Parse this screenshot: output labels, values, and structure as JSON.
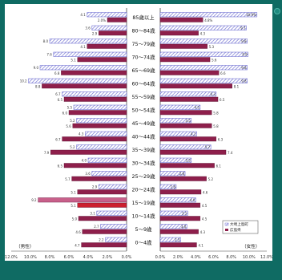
{
  "chart_data": {
    "type": "bar",
    "categories": [
      "85歳以上",
      "80～84歳",
      "75～79歳",
      "70～74歳",
      "65～69歳",
      "60～64歳",
      "55～59歳",
      "50～54歳",
      "45～49歳",
      "40～44歳",
      "35～39歳",
      "30～34歳",
      "25～29歳",
      "20～24歳",
      "15～19歳",
      "10～14歳",
      "5～9歳",
      "0～4歳"
    ],
    "xlim": [
      0,
      12
    ],
    "xticks": [
      "12.0%",
      "10.0%",
      "8.0%",
      "6.0%",
      "4.0%",
      "2.0%",
      "0.0%"
    ],
    "xticks_right": [
      "0.0%",
      "2.0%",
      "4.0%",
      "6.0%",
      "8.0%",
      "10.0%",
      "12.0%"
    ],
    "left_label": "（男性）",
    "right_label": "（女性）",
    "series": [
      {
        "name": "大崎上島町",
        "side": "male",
        "values": [
          4.1,
          3.6,
          8.0,
          7.6,
          9.0,
          10.2,
          6.7,
          5.5,
          5.2,
          4.3,
          5.2,
          4.0,
          3.6,
          2.9,
          9.2,
          3.1,
          2.7,
          2.2
        ],
        "labels": [
          "4.1",
          "3.6",
          "8.0",
          "7.6",
          "9.0",
          "10.2",
          "6.7",
          "5.5",
          "5.2",
          "4.3",
          "5.2",
          "4.0",
          "3.6",
          "2.9",
          "9.2",
          "3.1",
          "2.7",
          "2.2"
        ]
      },
      {
        "name": "広島県",
        "side": "male",
        "values": [
          2.0,
          2.9,
          4.1,
          5.1,
          6.8,
          8.8,
          6.5,
          6.0,
          5.6,
          6.7,
          7.9,
          6.5,
          5.7,
          5.1,
          5.1,
          5.0,
          4.6,
          4.7
        ],
        "labels": [
          "2.0%",
          "2.9",
          "4.1",
          "5.1",
          "6.8",
          "8.8",
          "6.5",
          "6.0",
          "5.6",
          "6.7",
          "7.9",
          "6.5",
          "5.7",
          "5.1",
          "5.1",
          "5.0",
          "4.6",
          "4.7"
        ]
      },
      {
        "name": "大崎上島町",
        "side": "female",
        "values": [
          10.9,
          9.7,
          9.8,
          9.9,
          9.8,
          9.8,
          6.3,
          4.5,
          3.5,
          4.1,
          5.7,
          3.5,
          2.8,
          1.8,
          4.0,
          3.1,
          3.0,
          2.3
        ],
        "labels": [
          "10.9%",
          "9.7",
          "9.8",
          "9.9",
          "9.8",
          "9.8",
          "6.3",
          "4.5",
          "3.5",
          "4.1",
          "5.7",
          "3.5",
          "2.8",
          "1.8",
          "4.0",
          "3.1",
          "3.0",
          "2.3"
        ]
      },
      {
        "name": "広島県",
        "side": "female",
        "values": [
          4.8,
          4.3,
          5.3,
          5.6,
          6.6,
          8.1,
          6.5,
          5.8,
          5.8,
          6.3,
          7.4,
          6.1,
          5.2,
          4.6,
          4.5,
          4.5,
          4.3,
          4.1
        ],
        "labels": [
          "4.8%",
          "4.3",
          "5.3",
          "5.6",
          "6.6",
          "8.1",
          "6.5",
          "5.8",
          "5.8",
          "6.3",
          "7.4",
          "6.1",
          "5.2",
          "4.6",
          "4.5",
          "4.5",
          "4.3",
          "4.1"
        ]
      }
    ],
    "legend": [
      "大崎上島町",
      "広島県"
    ],
    "legend_position": "bottom-right",
    "colors": {
      "town": "#8a8ad8",
      "prefecture": "#8e1f4b",
      "highlight_town": "#c8608a",
      "highlight_pref": "#cc1f2e"
    }
  }
}
